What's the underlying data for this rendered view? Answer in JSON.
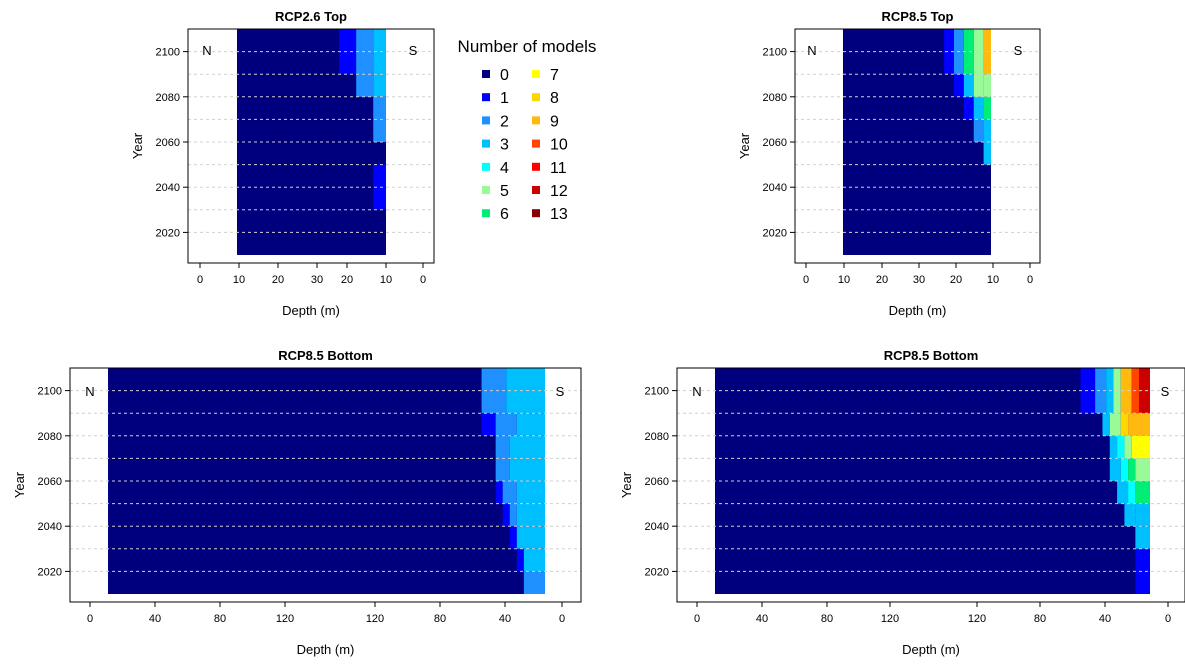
{
  "colors": [
    "#00007f",
    "#0000ff",
    "#1e90ff",
    "#00bfff",
    "#00ffff",
    "#98fb98",
    "#00ee76",
    "#ffff00",
    "#ffd700",
    "#ffb90f",
    "#ff4500",
    "#ff0000",
    "#cd0000",
    "#8b0000"
  ],
  "legend": {
    "title": "Number of models",
    "labels": [
      "0",
      "1",
      "2",
      "3",
      "4",
      "5",
      "6",
      "7",
      "8",
      "9",
      "10",
      "11",
      "12",
      "13"
    ]
  },
  "chart_data": [
    {
      "type": "heatmap",
      "title": "RCP2.6 Top",
      "xlabel": "Depth (m)",
      "ylabel": "Year",
      "x_tick_labels": [
        "0",
        "10",
        "20",
        "30",
        "20",
        "10",
        "0"
      ],
      "y_tick_labels": [
        "2020",
        "2040",
        "2060",
        "2080",
        "2100"
      ],
      "side_labels": [
        "N",
        "S"
      ],
      "depth_profile_km": [
        0,
        10,
        20,
        30,
        30,
        20,
        10,
        0
      ],
      "year_bins": [
        2010,
        2020,
        2030,
        2040,
        2050,
        2060,
        2070,
        2080,
        2090,
        2100,
        2110
      ],
      "cells": [
        {
          "x0": 24,
          "x1": 28,
          "y0": 2090,
          "y1": 2110,
          "v": 1
        },
        {
          "x0": 28,
          "x1": 32,
          "y0": 2080,
          "y1": 2110,
          "v": 2
        },
        {
          "x0": 32,
          "x1": 35,
          "y0": 2080,
          "y1": 2110,
          "v": 3
        },
        {
          "x0": 32,
          "x1": 35,
          "y0": 2060,
          "y1": 2080,
          "v": 2
        },
        {
          "x0": 32,
          "x1": 35,
          "y0": 2030,
          "y1": 2050,
          "v": 1
        }
      ]
    },
    {
      "type": "heatmap",
      "title": "RCP8.5 Top",
      "xlabel": "Depth (m)",
      "ylabel": "Year",
      "x_tick_labels": [
        "0",
        "10",
        "20",
        "30",
        "20",
        "10",
        "0"
      ],
      "y_tick_labels": [
        "2020",
        "2040",
        "2060",
        "2080",
        "2100"
      ],
      "side_labels": [
        "N",
        "S"
      ],
      "depth_profile_km": [
        0,
        10,
        20,
        30,
        30,
        20,
        10,
        0
      ],
      "year_bins": [
        2010,
        2020,
        2030,
        2040,
        2050,
        2060,
        2070,
        2080,
        2090,
        2100,
        2110
      ],
      "cells": [
        {
          "x0": 20.5,
          "x1": 22.5,
          "y0": 2090,
          "y1": 2110,
          "v": 1
        },
        {
          "x0": 22.5,
          "x1": 24.5,
          "y0": 2080,
          "y1": 2090,
          "v": 1
        },
        {
          "x0": 22.5,
          "x1": 24.5,
          "y0": 2090,
          "y1": 2110,
          "v": 2
        },
        {
          "x0": 24.5,
          "x1": 26.5,
          "y0": 2070,
          "y1": 2080,
          "v": 1
        },
        {
          "x0": 24.5,
          "x1": 26.5,
          "y0": 2080,
          "y1": 2090,
          "v": 3
        },
        {
          "x0": 24.5,
          "x1": 26.5,
          "y0": 2090,
          "y1": 2110,
          "v": 6
        },
        {
          "x0": 26.5,
          "x1": 28.5,
          "y0": 2060,
          "y1": 2070,
          "v": 2
        },
        {
          "x0": 26.5,
          "x1": 28.5,
          "y0": 2070,
          "y1": 2080,
          "v": 3
        },
        {
          "x0": 26.5,
          "x1": 28.5,
          "y0": 2080,
          "y1": 2110,
          "v": 5
        },
        {
          "x0": 28.5,
          "x1": 30,
          "y0": 2050,
          "y1": 2060,
          "v": 3
        },
        {
          "x0": 28.5,
          "x1": 30,
          "y0": 2060,
          "y1": 2070,
          "v": 3
        },
        {
          "x0": 28.5,
          "x1": 30,
          "y0": 2070,
          "y1": 2080,
          "v": 6
        },
        {
          "x0": 28.5,
          "x1": 30,
          "y0": 2080,
          "y1": 2090,
          "v": 5
        },
        {
          "x0": 28.5,
          "x1": 30,
          "y0": 2090,
          "y1": 2110,
          "v": 9
        }
      ]
    },
    {
      "type": "heatmap",
      "title": "RCP8.5 Bottom",
      "xlabel": "Depth (m)",
      "ylabel": "Year",
      "x_tick_labels": [
        "0",
        "40",
        "80",
        "120",
        "120",
        "80",
        "40",
        "0"
      ],
      "y_tick_labels": [
        "2020",
        "2040",
        "2060",
        "2080",
        "2100"
      ],
      "side_labels": [
        "N",
        "S"
      ],
      "depth_profile_km": [
        0,
        10,
        40,
        80,
        120,
        120,
        80,
        40,
        10,
        0
      ],
      "year_bins": [
        2010,
        2020,
        2030,
        2040,
        2050,
        2060,
        2070,
        2080,
        2090,
        2100,
        2110
      ],
      "cells": [
        {
          "x0": 53,
          "x1": 56.5,
          "y0": 2090,
          "y1": 2110,
          "v": 2
        },
        {
          "x0": 53,
          "x1": 55,
          "y0": 2080,
          "y1": 2090,
          "v": 1
        },
        {
          "x0": 55,
          "x1": 58,
          "y0": 2080,
          "y1": 2090,
          "v": 2
        },
        {
          "x0": 56.5,
          "x1": 62,
          "y0": 2090,
          "y1": 2110,
          "v": 3
        },
        {
          "x0": 58,
          "x1": 62,
          "y0": 2080,
          "y1": 2090,
          "v": 3
        },
        {
          "x0": 55,
          "x1": 57,
          "y0": 2060,
          "y1": 2080,
          "v": 2
        },
        {
          "x0": 57,
          "x1": 62,
          "y0": 2060,
          "y1": 2080,
          "v": 3
        },
        {
          "x0": 55,
          "x1": 56,
          "y0": 2050,
          "y1": 2060,
          "v": 1
        },
        {
          "x0": 56,
          "x1": 58,
          "y0": 2050,
          "y1": 2060,
          "v": 2
        },
        {
          "x0": 58,
          "x1": 62,
          "y0": 2050,
          "y1": 2060,
          "v": 3
        },
        {
          "x0": 56,
          "x1": 57,
          "y0": 2040,
          "y1": 2050,
          "v": 1
        },
        {
          "x0": 57,
          "x1": 58,
          "y0": 2040,
          "y1": 2050,
          "v": 2
        },
        {
          "x0": 58,
          "x1": 62,
          "y0": 2040,
          "y1": 2050,
          "v": 3
        },
        {
          "x0": 57,
          "x1": 58,
          "y0": 2030,
          "y1": 2040,
          "v": 1
        },
        {
          "x0": 58,
          "x1": 62,
          "y0": 2030,
          "y1": 2040,
          "v": 3
        },
        {
          "x0": 58,
          "x1": 59,
          "y0": 2020,
          "y1": 2030,
          "v": 1
        },
        {
          "x0": 59,
          "x1": 62,
          "y0": 2020,
          "y1": 2030,
          "v": 3
        },
        {
          "x0": 59,
          "x1": 62,
          "y0": 2010,
          "y1": 2020,
          "v": 2
        }
      ]
    },
    {
      "type": "heatmap",
      "title": "RCP8.5 Bottom",
      "xlabel": "Depth (m)",
      "ylabel": "Year",
      "x_tick_labels": [
        "0",
        "40",
        "80",
        "120",
        "120",
        "80",
        "40",
        "0"
      ],
      "y_tick_labels": [
        "2020",
        "2040",
        "2060",
        "2080",
        "2100"
      ],
      "side_labels": [
        "N",
        "S"
      ],
      "depth_profile_km": [
        0,
        10,
        40,
        80,
        120,
        120,
        80,
        40,
        10,
        0
      ],
      "year_bins": [
        2010,
        2020,
        2030,
        2040,
        2050,
        2060,
        2070,
        2080,
        2090,
        2100,
        2110
      ],
      "cells": [
        {
          "x0": 50,
          "x1": 52,
          "y0": 2090,
          "y1": 2110,
          "v": 1
        },
        {
          "x0": 52,
          "x1": 53.5,
          "y0": 2090,
          "y1": 2110,
          "v": 2
        },
        {
          "x0": 53.5,
          "x1": 54.5,
          "y0": 2090,
          "y1": 2110,
          "v": 3
        },
        {
          "x0": 54.5,
          "x1": 55.5,
          "y0": 2090,
          "y1": 2110,
          "v": 5
        },
        {
          "x0": 55.5,
          "x1": 57,
          "y0": 2090,
          "y1": 2110,
          "v": 9
        },
        {
          "x0": 57,
          "x1": 58,
          "y0": 2090,
          "y1": 2110,
          "v": 10
        },
        {
          "x0": 58,
          "x1": 59.5,
          "y0": 2090,
          "y1": 2110,
          "v": 12
        },
        {
          "x0": 53,
          "x1": 54,
          "y0": 2080,
          "y1": 2090,
          "v": 3
        },
        {
          "x0": 54,
          "x1": 55.5,
          "y0": 2080,
          "y1": 2090,
          "v": 5
        },
        {
          "x0": 55.5,
          "x1": 56.5,
          "y0": 2080,
          "y1": 2090,
          "v": 8
        },
        {
          "x0": 56.5,
          "x1": 59.5,
          "y0": 2080,
          "y1": 2090,
          "v": 9
        },
        {
          "x0": 54,
          "x1": 55,
          "y0": 2070,
          "y1": 2080,
          "v": 3
        },
        {
          "x0": 55,
          "x1": 56,
          "y0": 2070,
          "y1": 2080,
          "v": 4
        },
        {
          "x0": 56,
          "x1": 57,
          "y0": 2070,
          "y1": 2080,
          "v": 5
        },
        {
          "x0": 57,
          "x1": 59.5,
          "y0": 2070,
          "y1": 2080,
          "v": 7
        },
        {
          "x0": 54,
          "x1": 55.5,
          "y0": 2060,
          "y1": 2070,
          "v": 3
        },
        {
          "x0": 55.5,
          "x1": 56.5,
          "y0": 2060,
          "y1": 2070,
          "v": 4
        },
        {
          "x0": 56.5,
          "x1": 57.5,
          "y0": 2060,
          "y1": 2070,
          "v": 6
        },
        {
          "x0": 57.5,
          "x1": 59.5,
          "y0": 2060,
          "y1": 2070,
          "v": 5
        },
        {
          "x0": 55,
          "x1": 56.5,
          "y0": 2050,
          "y1": 2060,
          "v": 3
        },
        {
          "x0": 56.5,
          "x1": 57.5,
          "y0": 2050,
          "y1": 2060,
          "v": 4
        },
        {
          "x0": 57.5,
          "x1": 59.5,
          "y0": 2050,
          "y1": 2060,
          "v": 6
        },
        {
          "x0": 56,
          "x1": 57.5,
          "y0": 2040,
          "y1": 2050,
          "v": 3
        },
        {
          "x0": 57.5,
          "x1": 59.5,
          "y0": 2040,
          "y1": 2050,
          "v": 3
        },
        {
          "x0": 57.5,
          "x1": 59.5,
          "y0": 2030,
          "y1": 2040,
          "v": 3
        },
        {
          "x0": 57.5,
          "x1": 59.5,
          "y0": 2010,
          "y1": 2030,
          "v": 1
        }
      ]
    }
  ]
}
